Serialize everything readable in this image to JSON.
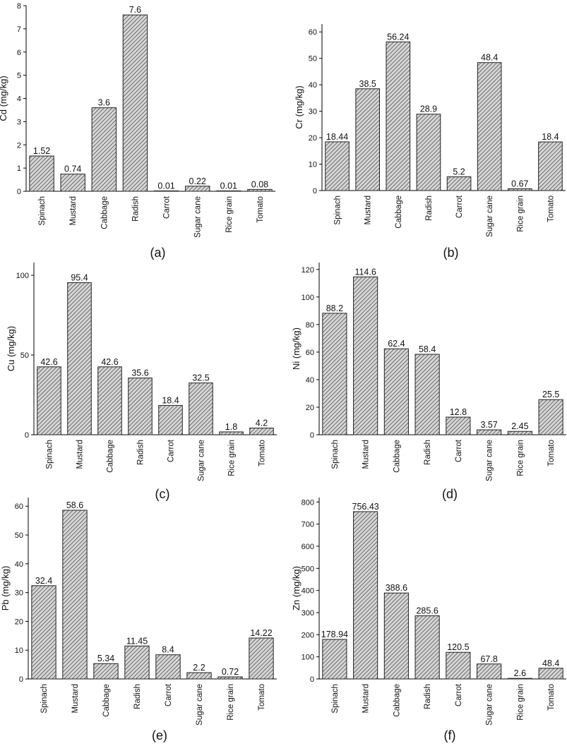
{
  "chart_data": [
    {
      "type": "bar",
      "panel_label": "(a)",
      "ylabel": "Cd (mg/kg)",
      "categories": [
        "Spinach",
        "Mustard",
        "Cabbage",
        "Radish",
        "Carrot",
        "Sugar cane",
        "Rice grain",
        "Tomato"
      ],
      "values": [
        1.52,
        0.74,
        3.6,
        7.6,
        0.01,
        0.22,
        0.01,
        0.08
      ],
      "value_labels": [
        "1.52",
        "0.74",
        "3.6",
        "7.6",
        "0.01",
        "0.22",
        "0.01",
        "0.08"
      ],
      "ylim": [
        0,
        8
      ],
      "yticks": [
        0,
        1,
        2,
        3,
        4,
        5,
        6,
        7,
        8
      ]
    },
    {
      "type": "bar",
      "panel_label": "(b)",
      "ylabel": "Cr (mg/kg)",
      "categories": [
        "Spinach",
        "Mustard",
        "Cabbage",
        "Radish",
        "Carrot",
        "Sugar cane",
        "Rice grain",
        "Tomato"
      ],
      "values": [
        18.44,
        38.5,
        56.24,
        28.9,
        5.2,
        48.4,
        0.67,
        18.4
      ],
      "value_labels": [
        "18.44",
        "38.5",
        "56.24",
        "28.9",
        "5.2",
        "48.4",
        "0.67",
        "18.4"
      ],
      "ylim": [
        0,
        63
      ],
      "yticks": [
        0,
        10,
        20,
        30,
        40,
        50,
        60
      ]
    },
    {
      "type": "bar",
      "panel_label": "(c)",
      "ylabel": "Cu (mg/kg)",
      "categories": [
        "Spinach",
        "Mustard",
        "Cabbage",
        "Radish",
        "Carrot",
        "Sugar cane",
        "Rice grain",
        "Tomato"
      ],
      "values": [
        42.6,
        95.4,
        42.6,
        35.6,
        18.4,
        32.5,
        1.8,
        4.2
      ],
      "value_labels": [
        "42.6",
        "95.4",
        "42.6",
        "35.6",
        "18.4",
        "32.5",
        "1.8",
        "4.2"
      ],
      "ylim": [
        0,
        108
      ],
      "yticks": [
        0,
        50,
        100
      ]
    },
    {
      "type": "bar",
      "panel_label": "(d)",
      "ylabel": "Ni (mg/kg)",
      "categories": [
        "Spinach",
        "Mustard",
        "Cabbage",
        "Radish",
        "Carrot",
        "Sugar cane",
        "Rice grain",
        "Tomato"
      ],
      "values": [
        88.2,
        114.6,
        62.4,
        58.4,
        12.8,
        3.57,
        2.45,
        25.5
      ],
      "value_labels": [
        "88.2",
        "114.6",
        "62.4",
        "58.4",
        "12.8",
        "3.57",
        "2.45",
        "25.5"
      ],
      "ylim": [
        0,
        125
      ],
      "yticks": [
        0,
        20,
        40,
        60,
        80,
        100,
        120
      ]
    },
    {
      "type": "bar",
      "panel_label": "(e)",
      "ylabel": "Pb (mg/kg)",
      "categories": [
        "Spinach",
        "Mustard",
        "Cabbage",
        "Radish",
        "Carrot",
        "Sugar cane",
        "Rice grain",
        "Tomato"
      ],
      "values": [
        32.4,
        58.6,
        5.34,
        11.45,
        8.4,
        2.2,
        0.72,
        14.22
      ],
      "value_labels": [
        "32.4",
        "58.6",
        "5.34",
        "11.45",
        "8.4",
        "2.2",
        "0.72",
        "14.22"
      ],
      "ylim": [
        0,
        63
      ],
      "yticks": [
        0,
        10,
        20,
        30,
        40,
        50,
        60
      ]
    },
    {
      "type": "bar",
      "panel_label": "(f)",
      "ylabel": "Zn (mg/kg)",
      "categories": [
        "Spinach",
        "Mustard",
        "Cabbage",
        "Radish",
        "Carrot",
        "Sugar cane",
        "Rice grain",
        "Tomato"
      ],
      "values": [
        178.94,
        756.43,
        388.6,
        285.6,
        120.5,
        67.8,
        2.6,
        48.4
      ],
      "value_labels": [
        "178.94",
        "756.43",
        "388.6",
        "285.6",
        "120.5",
        "67.8",
        "2.6",
        "48.4"
      ],
      "ylim": [
        0,
        820
      ],
      "yticks": [
        0,
        100,
        200,
        300,
        400,
        500,
        600,
        700,
        800
      ]
    }
  ]
}
